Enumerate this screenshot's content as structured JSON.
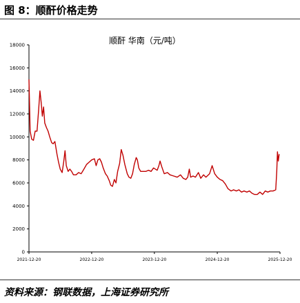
{
  "figure": {
    "title": "图 8：顺酐价格走势",
    "source": "资料来源：钢联数据，上海证券研究所"
  },
  "chart_data": {
    "type": "line",
    "title": "顺酐 华南（元/吨）",
    "xlabel": "",
    "ylabel": "",
    "ylim": [
      0,
      18000
    ],
    "yticks": [
      0,
      2000,
      4000,
      6000,
      8000,
      10000,
      12000,
      14000,
      16000,
      18000
    ],
    "ytick_labels": [
      "0",
      "2000",
      "4000",
      "6000",
      "8000",
      "10000",
      "12000",
      "14000",
      "16000",
      "18000"
    ],
    "xlim": [
      "2021-12-20",
      "2025-12-20"
    ],
    "xticks": [
      "2021-12-20",
      "2022-12-20",
      "2023-12-20",
      "2024-12-20",
      "2025-12-20"
    ],
    "xtick_labels": [
      "2021-12-20",
      "2022-12-20",
      "2023-12-20",
      "2024-12-20",
      "2025-12-20"
    ],
    "grid": false,
    "legend": "none",
    "line_color": "#c00000",
    "series": [
      {
        "name": "顺酐 华南（元/吨）",
        "points": [
          [
            "2021-12-20",
            15000
          ],
          [
            "2021-12-27",
            10500
          ],
          [
            "2022-01-05",
            9800
          ],
          [
            "2022-01-15",
            9700
          ],
          [
            "2022-01-25",
            10500
          ],
          [
            "2022-02-05",
            10500
          ],
          [
            "2022-02-15",
            12500
          ],
          [
            "2022-02-22",
            14000
          ],
          [
            "2022-03-01",
            13000
          ],
          [
            "2022-03-08",
            11800
          ],
          [
            "2022-03-15",
            12600
          ],
          [
            "2022-03-22",
            11200
          ],
          [
            "2022-04-01",
            10800
          ],
          [
            "2022-04-10",
            10500
          ],
          [
            "2022-04-20",
            10000
          ],
          [
            "2022-05-01",
            9500
          ],
          [
            "2022-05-10",
            9400
          ],
          [
            "2022-05-20",
            9600
          ],
          [
            "2022-06-01",
            8500
          ],
          [
            "2022-06-10",
            7800
          ],
          [
            "2022-06-20",
            7200
          ],
          [
            "2022-07-01",
            6900
          ],
          [
            "2022-07-10",
            7800
          ],
          [
            "2022-07-18",
            8800
          ],
          [
            "2022-07-25",
            7500
          ],
          [
            "2022-08-05",
            7000
          ],
          [
            "2022-08-15",
            7200
          ],
          [
            "2022-08-25",
            7000
          ],
          [
            "2022-09-05",
            6700
          ],
          [
            "2022-09-20",
            6700
          ],
          [
            "2022-10-05",
            6900
          ],
          [
            "2022-10-20",
            6800
          ],
          [
            "2022-11-05",
            7200
          ],
          [
            "2022-11-20",
            7600
          ],
          [
            "2022-12-05",
            7800
          ],
          [
            "2022-12-20",
            8000
          ],
          [
            "2023-01-05",
            8100
          ],
          [
            "2023-01-15",
            7500
          ],
          [
            "2023-01-25",
            8000
          ],
          [
            "2023-02-05",
            8100
          ],
          [
            "2023-02-15",
            7800
          ],
          [
            "2023-02-25",
            7300
          ],
          [
            "2023-03-10",
            6800
          ],
          [
            "2023-03-20",
            6600
          ],
          [
            "2023-04-01",
            6200
          ],
          [
            "2023-04-10",
            5800
          ],
          [
            "2023-04-20",
            5700
          ],
          [
            "2023-05-01",
            6300
          ],
          [
            "2023-05-10",
            6000
          ],
          [
            "2023-05-20",
            7000
          ],
          [
            "2023-06-01",
            7700
          ],
          [
            "2023-06-10",
            8900
          ],
          [
            "2023-06-20",
            8400
          ],
          [
            "2023-07-01",
            7600
          ],
          [
            "2023-07-15",
            6800
          ],
          [
            "2023-07-25",
            6500
          ],
          [
            "2023-08-05",
            6400
          ],
          [
            "2023-08-15",
            6800
          ],
          [
            "2023-08-25",
            7600
          ],
          [
            "2023-09-05",
            8200
          ],
          [
            "2023-09-12",
            8000
          ],
          [
            "2023-09-20",
            7300
          ],
          [
            "2023-10-01",
            7000
          ],
          [
            "2023-10-15",
            7000
          ],
          [
            "2023-11-01",
            7000
          ],
          [
            "2023-11-15",
            7100
          ],
          [
            "2023-12-01",
            7000
          ],
          [
            "2023-12-15",
            7300
          ],
          [
            "2024-01-05",
            7100
          ],
          [
            "2024-01-15",
            7500
          ],
          [
            "2024-01-22",
            7900
          ],
          [
            "2024-02-01",
            7400
          ],
          [
            "2024-02-15",
            6800
          ],
          [
            "2024-03-05",
            6900
          ],
          [
            "2024-03-20",
            6700
          ],
          [
            "2024-04-10",
            6600
          ],
          [
            "2024-05-01",
            6500
          ],
          [
            "2024-05-20",
            6700
          ],
          [
            "2024-06-05",
            6400
          ],
          [
            "2024-06-20",
            6300
          ],
          [
            "2024-07-01",
            6500
          ],
          [
            "2024-07-10",
            7200
          ],
          [
            "2024-07-18",
            6500
          ],
          [
            "2024-08-01",
            6600
          ],
          [
            "2024-08-15",
            6500
          ],
          [
            "2024-09-01",
            6900
          ],
          [
            "2024-09-15",
            6400
          ],
          [
            "2024-10-01",
            6700
          ],
          [
            "2024-10-15",
            6500
          ],
          [
            "2024-11-05",
            6800
          ],
          [
            "2024-11-20",
            7500
          ],
          [
            "2024-12-05",
            6800
          ],
          [
            "2024-12-20",
            6500
          ],
          [
            "2025-01-05",
            6300
          ],
          [
            "2025-01-20",
            6200
          ],
          [
            "2025-02-05",
            5900
          ],
          [
            "2025-02-20",
            5500
          ],
          [
            "2025-03-10",
            5300
          ],
          [
            "2025-03-25",
            5400
          ],
          [
            "2025-04-10",
            5300
          ],
          [
            "2025-04-25",
            5400
          ],
          [
            "2025-05-10",
            5200
          ],
          [
            "2025-05-25",
            5300
          ],
          [
            "2025-06-10",
            5200
          ],
          [
            "2025-06-25",
            5300
          ],
          [
            "2025-07-10",
            5100
          ],
          [
            "2025-07-25",
            5000
          ],
          [
            "2025-08-10",
            5000
          ],
          [
            "2025-08-25",
            5200
          ],
          [
            "2025-09-10",
            5000
          ],
          [
            "2025-09-25",
            5300
          ],
          [
            "2025-10-10",
            5200
          ],
          [
            "2025-10-25",
            5300
          ],
          [
            "2025-11-10",
            5300
          ],
          [
            "2025-11-25",
            5400
          ],
          [
            "2025-12-01",
            7000
          ],
          [
            "2025-12-05",
            8700
          ],
          [
            "2025-12-10",
            7900
          ],
          [
            "2025-12-15",
            8500
          ]
        ]
      }
    ]
  }
}
